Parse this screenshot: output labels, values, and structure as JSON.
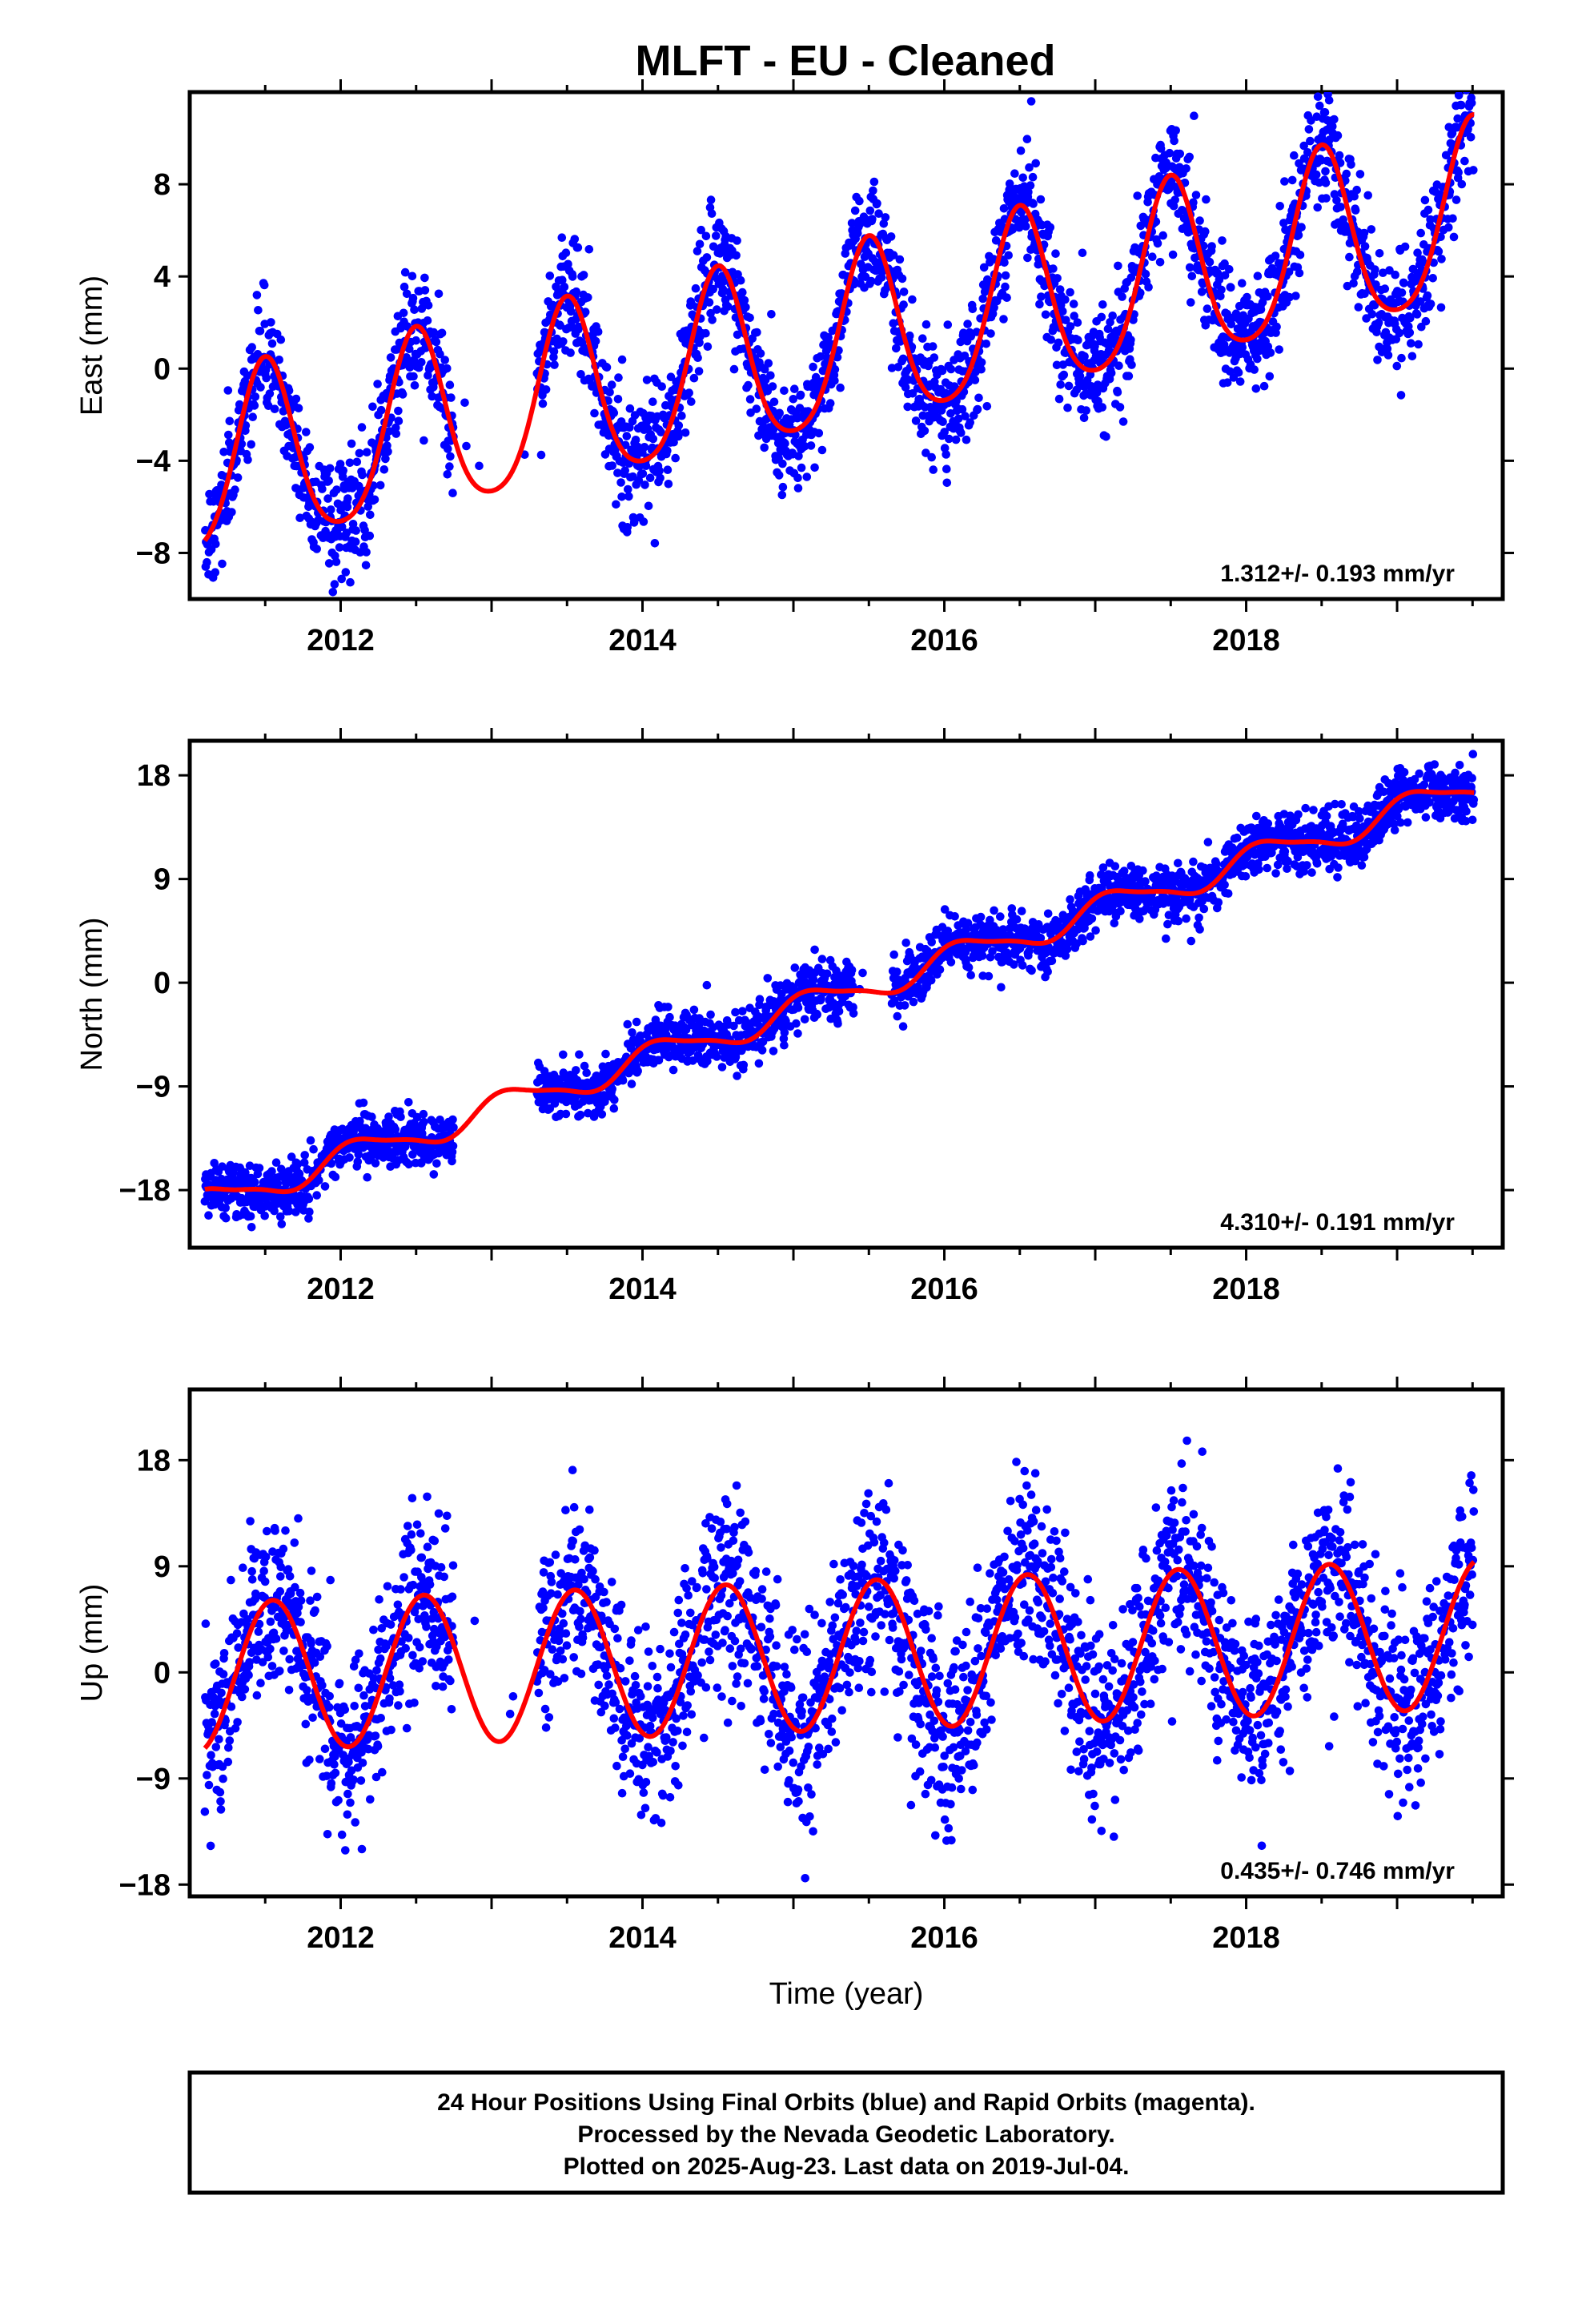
{
  "title": "MLFT  - EU - Cleaned",
  "colors": {
    "points": "#0000ff",
    "fit": "#ff0000",
    "frame": "#000000",
    "background": "#ffffff"
  },
  "footer": {
    "lines": [
      "24 Hour Positions Using Final Orbits (blue) and Rapid Orbits (magenta).",
      "Processed by the Nevada Geodetic Laboratory.",
      "Plotted on 2025-Aug-23. Last data on 2019-Jul-04."
    ]
  },
  "chart_data": [
    {
      "type": "scatter",
      "panel": "east",
      "ylabel": "East (mm)",
      "xlabel": "",
      "xlim": [
        2011.0,
        2019.7
      ],
      "ylim": [
        -10.0,
        12.0
      ],
      "yticks": [
        -8,
        -4,
        0,
        4,
        8
      ],
      "xticks": [
        2012,
        2014,
        2016,
        2018
      ],
      "rate_text": "1.312+/- 0.193 mm/yr",
      "data_range": [
        2011.1,
        2019.51
      ],
      "gaps": [
        [
          2012.75,
          2013.3
        ]
      ],
      "model": {
        "offset": -4.5,
        "rate": 1.312,
        "ref_year": 2011.1,
        "annual_cos": -3.9,
        "annual_sin": 0.0,
        "semi_cos": 0.6,
        "semi_sin": 0.0
      },
      "scatter_sd": 1.3,
      "grid": false
    },
    {
      "type": "scatter",
      "panel": "north",
      "ylabel": "North (mm)",
      "xlabel": "",
      "xlim": [
        2011.0,
        2019.7
      ],
      "ylim": [
        -23.0,
        21.0
      ],
      "yticks": [
        -18,
        -9,
        0,
        9,
        18
      ],
      "xticks": [
        2012,
        2014,
        2016,
        2018
      ],
      "rate_text": "4.310+/- 0.191 mm/yr",
      "data_range": [
        2011.1,
        2019.51
      ],
      "gaps": [
        [
          2012.75,
          2013.3
        ],
        [
          2015.4,
          2015.65
        ]
      ],
      "model": {
        "offset": -19.2,
        "rate": 4.31,
        "ref_year": 2011.1,
        "annual_cos": 0.8,
        "annual_sin": 0.9,
        "semi_cos": 0.3,
        "semi_sin": 0.0
      },
      "scatter_sd": 1.2,
      "grid": false
    },
    {
      "type": "scatter",
      "panel": "up",
      "ylabel": "Up (mm)",
      "xlabel": "Time (year)",
      "xlim": [
        2011.0,
        2019.7
      ],
      "ylim": [
        -19.0,
        24.0
      ],
      "yticks": [
        -18,
        -9,
        0,
        9,
        18
      ],
      "xticks": [
        2012,
        2014,
        2016,
        2018
      ],
      "rate_text": "0.435+/- 0.746 mm/yr",
      "data_range": [
        2011.1,
        2019.51
      ],
      "gaps": [
        [
          2012.75,
          2013.3
        ]
      ],
      "model": {
        "offset": -0.4,
        "rate": 0.435,
        "ref_year": 2011.1,
        "annual_cos": -6.0,
        "annual_sin": -2.0,
        "semi_cos": 0.0,
        "semi_sin": 0.0
      },
      "scatter_sd": 3.8,
      "grid": false
    }
  ]
}
